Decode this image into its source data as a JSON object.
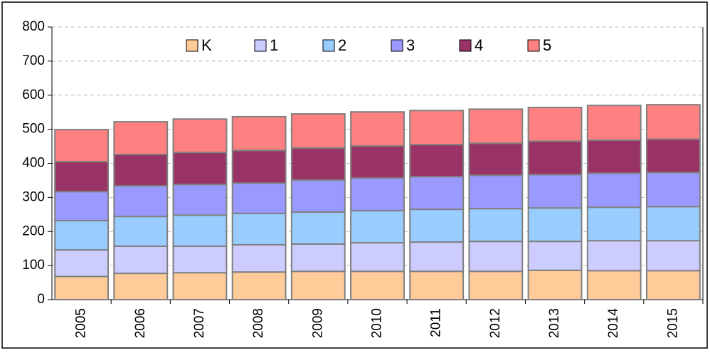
{
  "chart_data": {
    "type": "stacked-bar",
    "categories": [
      "2005",
      "2006",
      "2007",
      "2008",
      "2009",
      "2010",
      "2011",
      "2012",
      "2013",
      "2014",
      "2015"
    ],
    "series": [
      {
        "name": "K",
        "color": "#ffcc99",
        "values": [
          68,
          77,
          79,
          81,
          83,
          83,
          83,
          83,
          86,
          85,
          85
        ]
      },
      {
        "name": "1",
        "color": "#ccccff",
        "values": [
          78,
          80,
          78,
          80,
          80,
          84,
          86,
          88,
          85,
          88,
          88
        ]
      },
      {
        "name": "2",
        "color": "#99ccff",
        "values": [
          86,
          87,
          91,
          92,
          94,
          94,
          96,
          96,
          98,
          98,
          100
        ]
      },
      {
        "name": "3",
        "color": "#9999ff",
        "values": [
          85,
          90,
          90,
          89,
          94,
          96,
          96,
          98,
          98,
          100,
          100
        ]
      },
      {
        "name": "4",
        "color": "#993366",
        "values": [
          88,
          92,
          94,
          96,
          94,
          94,
          94,
          94,
          98,
          97,
          98
        ]
      },
      {
        "name": "5",
        "color": "#ff8080",
        "values": [
          94,
          96,
          98,
          99,
          100,
          100,
          100,
          100,
          99,
          102,
          101
        ]
      }
    ],
    "ylim": [
      0,
      800
    ],
    "yticks": [
      0,
      100,
      200,
      300,
      400,
      500,
      600,
      700,
      800
    ],
    "grid": true,
    "legend": "top"
  }
}
